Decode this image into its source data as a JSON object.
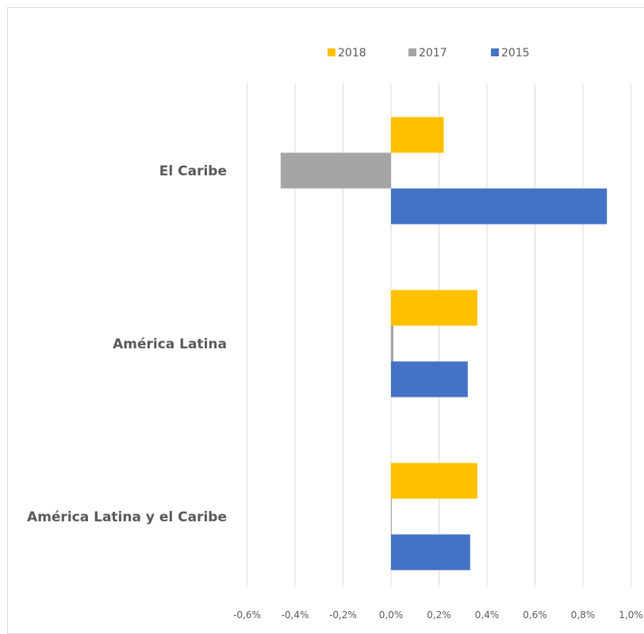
{
  "chart_data": {
    "type": "bar",
    "orientation": "horizontal",
    "title": "",
    "categories": [
      "El Caribe",
      "América Latina",
      "América Latina y el Caribe"
    ],
    "series": [
      {
        "name": "2018",
        "color": "#FFC000",
        "values": [
          0.22,
          0.36,
          0.36
        ]
      },
      {
        "name": "2017",
        "color": "#A5A5A5",
        "values": [
          -0.46,
          0.01,
          0.0
        ]
      },
      {
        "name": "2015",
        "color": "#4472C4",
        "values": [
          0.9,
          0.32,
          0.33
        ]
      }
    ],
    "x_ticks": [
      "-0,6%",
      "-0,4%",
      "-0,2%",
      "0,0%",
      "0,2%",
      "0,4%",
      "0,6%",
      "0,8%",
      "1,0%"
    ],
    "xlim": [
      -0.6,
      1.0
    ],
    "grid": true,
    "legend_position": "top"
  }
}
